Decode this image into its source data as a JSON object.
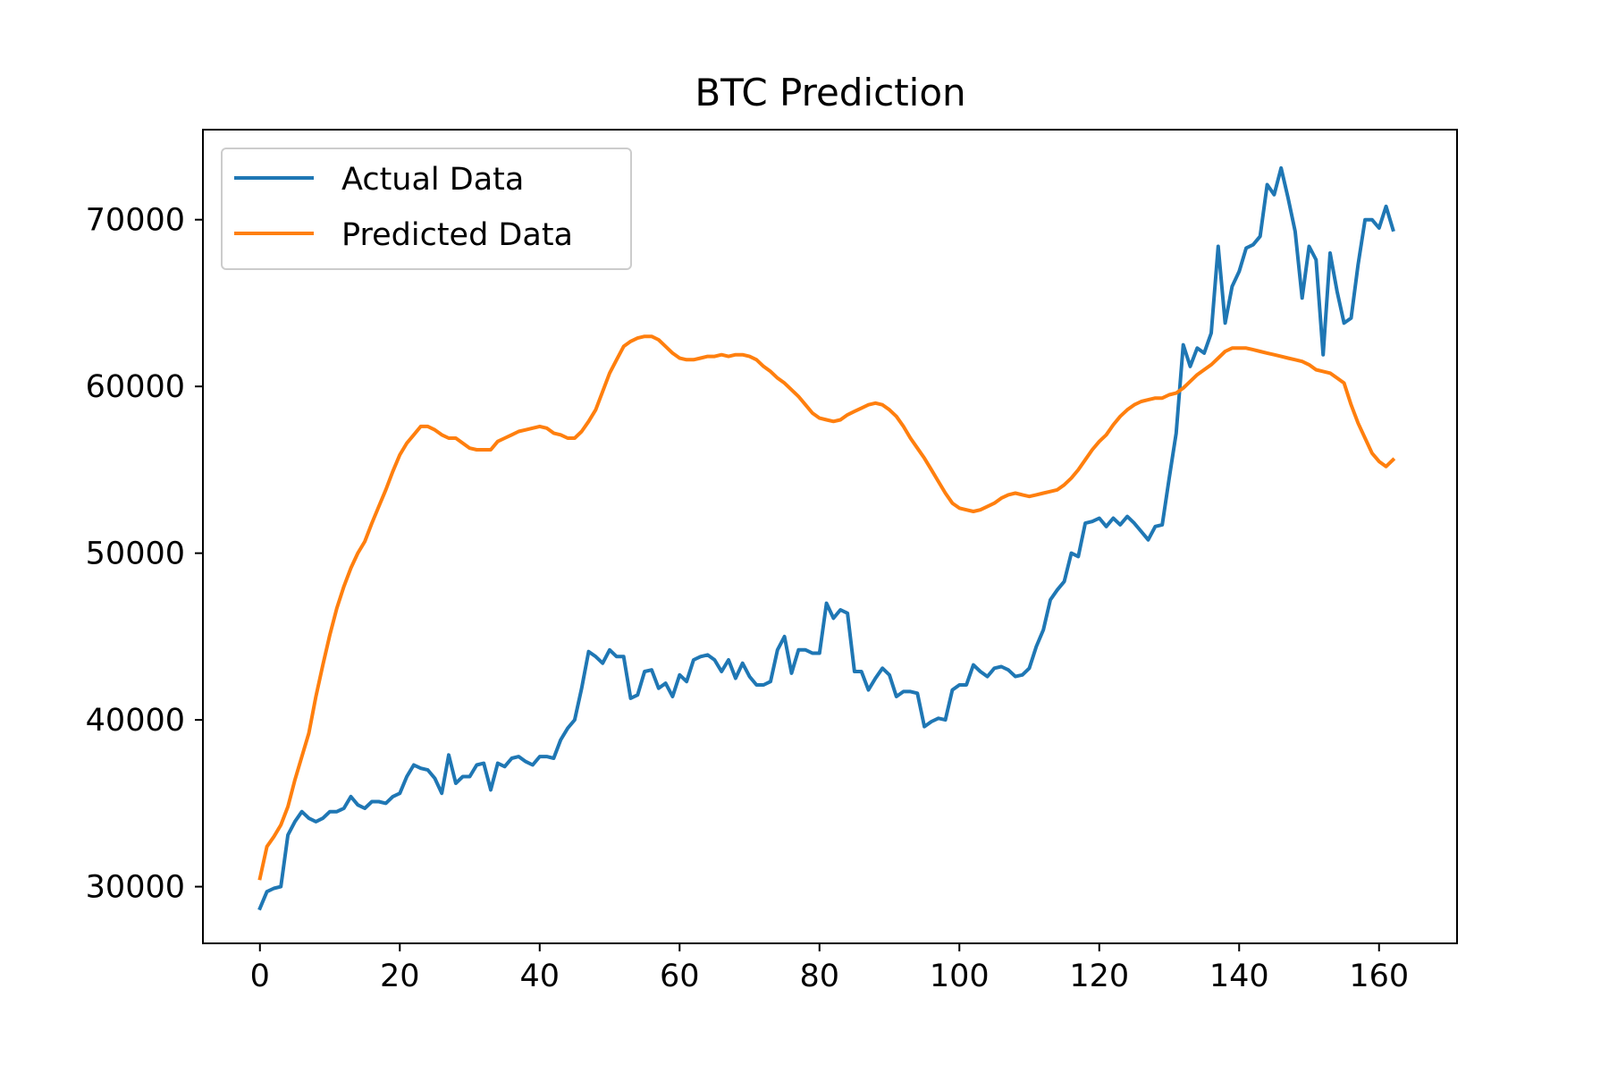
{
  "chart_data": {
    "type": "line",
    "title": "BTC Prediction",
    "xlabel": "",
    "ylabel": "",
    "xlim": [
      -8.15,
      171.15
    ],
    "ylim": [
      26600,
      75400
    ],
    "x_ticks": [
      0,
      20,
      40,
      60,
      80,
      100,
      120,
      140,
      160
    ],
    "x_tick_labels": [
      "0",
      "20",
      "40",
      "60",
      "80",
      "100",
      "120",
      "140",
      "160"
    ],
    "y_ticks": [
      30000,
      40000,
      50000,
      60000,
      70000
    ],
    "y_tick_labels": [
      "30000",
      "40000",
      "50000",
      "60000",
      "70000"
    ],
    "grid": false,
    "legend_position": "top-left",
    "colors": {
      "actual": "#1f77b4",
      "predicted": "#ff7f0e",
      "axes": "#000000",
      "legend_border": "#cccccc"
    },
    "series": [
      {
        "name": "Actual Data",
        "x": [
          0,
          1,
          2,
          3,
          4,
          5,
          6,
          7,
          8,
          9,
          10,
          11,
          12,
          13,
          14,
          15,
          16,
          17,
          18,
          19,
          20,
          21,
          22,
          23,
          24,
          25,
          26,
          27,
          28,
          29,
          30,
          31,
          32,
          33,
          34,
          35,
          36,
          37,
          38,
          39,
          40,
          41,
          42,
          43,
          44,
          45,
          46,
          47,
          48,
          49,
          50,
          51,
          52,
          53,
          54,
          55,
          56,
          57,
          58,
          59,
          60,
          61,
          62,
          63,
          64,
          65,
          66,
          67,
          68,
          69,
          70,
          71,
          72,
          73,
          74,
          75,
          76,
          77,
          78,
          79,
          80,
          81,
          82,
          83,
          84,
          85,
          86,
          87,
          88,
          89,
          90,
          91,
          92,
          93,
          94,
          95,
          96,
          97,
          98,
          99,
          100,
          101,
          102,
          103,
          104,
          105,
          106,
          107,
          108,
          109,
          110,
          111,
          112,
          113,
          114,
          115,
          116,
          117,
          118,
          119,
          120,
          121,
          122,
          123,
          124,
          125,
          126,
          127,
          128,
          129,
          130,
          131,
          132,
          133,
          134,
          135,
          136,
          137,
          138,
          139,
          140,
          141,
          142,
          143,
          144,
          145,
          146,
          147,
          148,
          149,
          150,
          151,
          152,
          153,
          154,
          155,
          156,
          157,
          158,
          159,
          160,
          161,
          162
        ],
        "values": [
          28700,
          29700,
          29900,
          30000,
          33100,
          33900,
          34500,
          34100,
          33900,
          34100,
          34500,
          34500,
          34700,
          35400,
          34900,
          34700,
          35100,
          35100,
          35000,
          35400,
          35600,
          36600,
          37300,
          37100,
          37000,
          36500,
          35600,
          37900,
          36200,
          36600,
          36600,
          37300,
          37400,
          35800,
          37400,
          37200,
          37700,
          37800,
          37500,
          37300,
          37800,
          37800,
          37700,
          38800,
          39500,
          40000,
          41900,
          44100,
          43800,
          43400,
          44200,
          43800,
          43800,
          41300,
          41500,
          42900,
          43000,
          41900,
          42200,
          41400,
          42700,
          42300,
          43600,
          43800,
          43900,
          43600,
          42900,
          43600,
          42500,
          43400,
          42600,
          42100,
          42100,
          42300,
          44200,
          45000,
          42800,
          44200,
          44200,
          44000,
          44000,
          47000,
          46100,
          46600,
          46400,
          42900,
          42900,
          41800,
          42500,
          43100,
          42700,
          41400,
          41700,
          41700,
          41600,
          39600,
          39900,
          40100,
          40000,
          41800,
          42100,
          42100,
          43300,
          42900,
          42600,
          43100,
          43200,
          43000,
          42600,
          42700,
          43100,
          44400,
          45400,
          47200,
          47800,
          48300,
          50000,
          49800,
          51800,
          51900,
          52100,
          51600,
          52100,
          51700,
          52200,
          51800,
          51300,
          50800,
          51600,
          51700,
          54500,
          57200,
          62500,
          61200,
          62300,
          62000,
          63200,
          68400,
          63800,
          66000,
          66900,
          68300,
          68500,
          69000,
          72100,
          71500,
          73100,
          71300,
          69300,
          65300,
          68400,
          67600,
          61900,
          68000,
          65700,
          63800,
          64100,
          67300,
          70000,
          70000,
          69500,
          70800,
          69400
        ]
      },
      {
        "name": "Predicted Data",
        "x": [
          0,
          1,
          2,
          3,
          4,
          5,
          6,
          7,
          8,
          9,
          10,
          11,
          12,
          13,
          14,
          15,
          16,
          17,
          18,
          19,
          20,
          21,
          22,
          23,
          24,
          25,
          26,
          27,
          28,
          29,
          30,
          31,
          32,
          33,
          34,
          35,
          36,
          37,
          38,
          39,
          40,
          41,
          42,
          43,
          44,
          45,
          46,
          47,
          48,
          49,
          50,
          51,
          52,
          53,
          54,
          55,
          56,
          57,
          58,
          59,
          60,
          61,
          62,
          63,
          64,
          65,
          66,
          67,
          68,
          69,
          70,
          71,
          72,
          73,
          74,
          75,
          76,
          77,
          78,
          79,
          80,
          81,
          82,
          83,
          84,
          85,
          86,
          87,
          88,
          89,
          90,
          91,
          92,
          93,
          94,
          95,
          96,
          97,
          98,
          99,
          100,
          101,
          102,
          103,
          104,
          105,
          106,
          107,
          108,
          109,
          110,
          111,
          112,
          113,
          114,
          115,
          116,
          117,
          118,
          119,
          120,
          121,
          122,
          123,
          124,
          125,
          126,
          127,
          128,
          129,
          130,
          131,
          132,
          133,
          134,
          135,
          136,
          137,
          138,
          139,
          140,
          141,
          142,
          143,
          144,
          145,
          146,
          147,
          148,
          149,
          150,
          151,
          152,
          153,
          154,
          155,
          156,
          157,
          158,
          159,
          160,
          161,
          162
        ],
        "values": [
          30500,
          32400,
          33000,
          33700,
          34800,
          36400,
          37800,
          39200,
          41400,
          43300,
          45100,
          46700,
          48000,
          49100,
          50000,
          50700,
          51800,
          52800,
          53800,
          54900,
          55900,
          56600,
          57100,
          57600,
          57600,
          57400,
          57100,
          56900,
          56900,
          56600,
          56300,
          56200,
          56200,
          56200,
          56700,
          56900,
          57100,
          57300,
          57400,
          57500,
          57600,
          57500,
          57200,
          57100,
          56900,
          56900,
          57300,
          57900,
          58600,
          59700,
          60800,
          61600,
          62400,
          62700,
          62900,
          63000,
          63000,
          62800,
          62400,
          62000,
          61700,
          61600,
          61600,
          61700,
          61800,
          61800,
          61900,
          61800,
          61900,
          61900,
          61800,
          61600,
          61200,
          60900,
          60500,
          60200,
          59800,
          59400,
          58900,
          58400,
          58100,
          58000,
          57900,
          58000,
          58300,
          58500,
          58700,
          58900,
          59000,
          58900,
          58600,
          58200,
          57600,
          56900,
          56300,
          55700,
          55000,
          54300,
          53600,
          53000,
          52700,
          52600,
          52500,
          52600,
          52800,
          53000,
          53300,
          53500,
          53600,
          53500,
          53400,
          53500,
          53600,
          53700,
          53800,
          54100,
          54500,
          55000,
          55600,
          56200,
          56700,
          57100,
          57700,
          58200,
          58600,
          58900,
          59100,
          59200,
          59300,
          59300,
          59500,
          59600,
          59900,
          60300,
          60700,
          61000,
          61300,
          61700,
          62100,
          62300,
          62300,
          62300,
          62200,
          62100,
          62000,
          61900,
          61800,
          61700,
          61600,
          61500,
          61300,
          61000,
          60900,
          60800,
          60500,
          60200,
          58900,
          57800,
          56900,
          56000,
          55500,
          55200,
          55600
        ]
      }
    ]
  }
}
